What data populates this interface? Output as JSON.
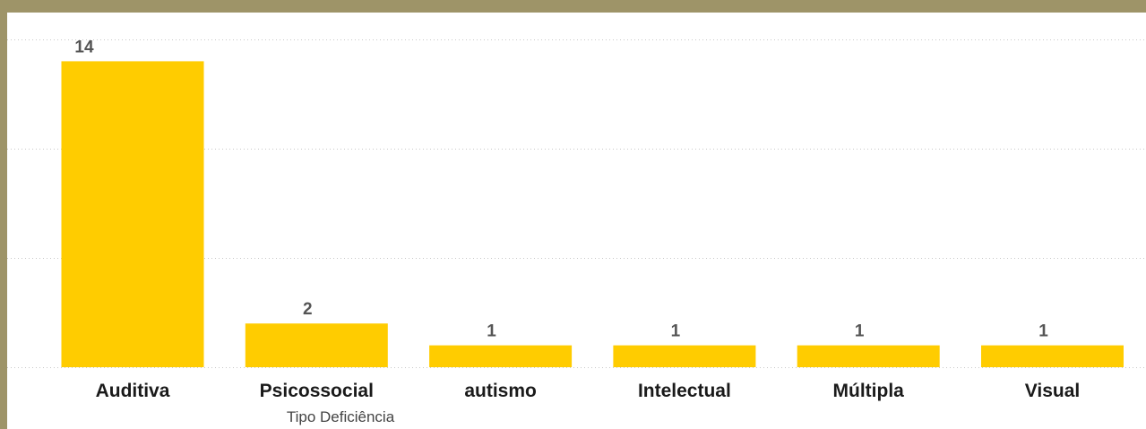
{
  "chart_data": {
    "type": "bar",
    "categories": [
      "Auditiva",
      "Psicossocial",
      "autismo",
      "Intelectual",
      "Múltipla",
      "Visual"
    ],
    "values": [
      14,
      2,
      1,
      1,
      1,
      1
    ],
    "xlabel": "Tipo Deficiência",
    "ylabel": "",
    "ylim": [
      0,
      15
    ],
    "gridlines": [
      0,
      5,
      10,
      15
    ],
    "data_labels": true,
    "bar_color": "#ffcc00",
    "background": "#ffffff",
    "frame_color": "#9e9468"
  }
}
